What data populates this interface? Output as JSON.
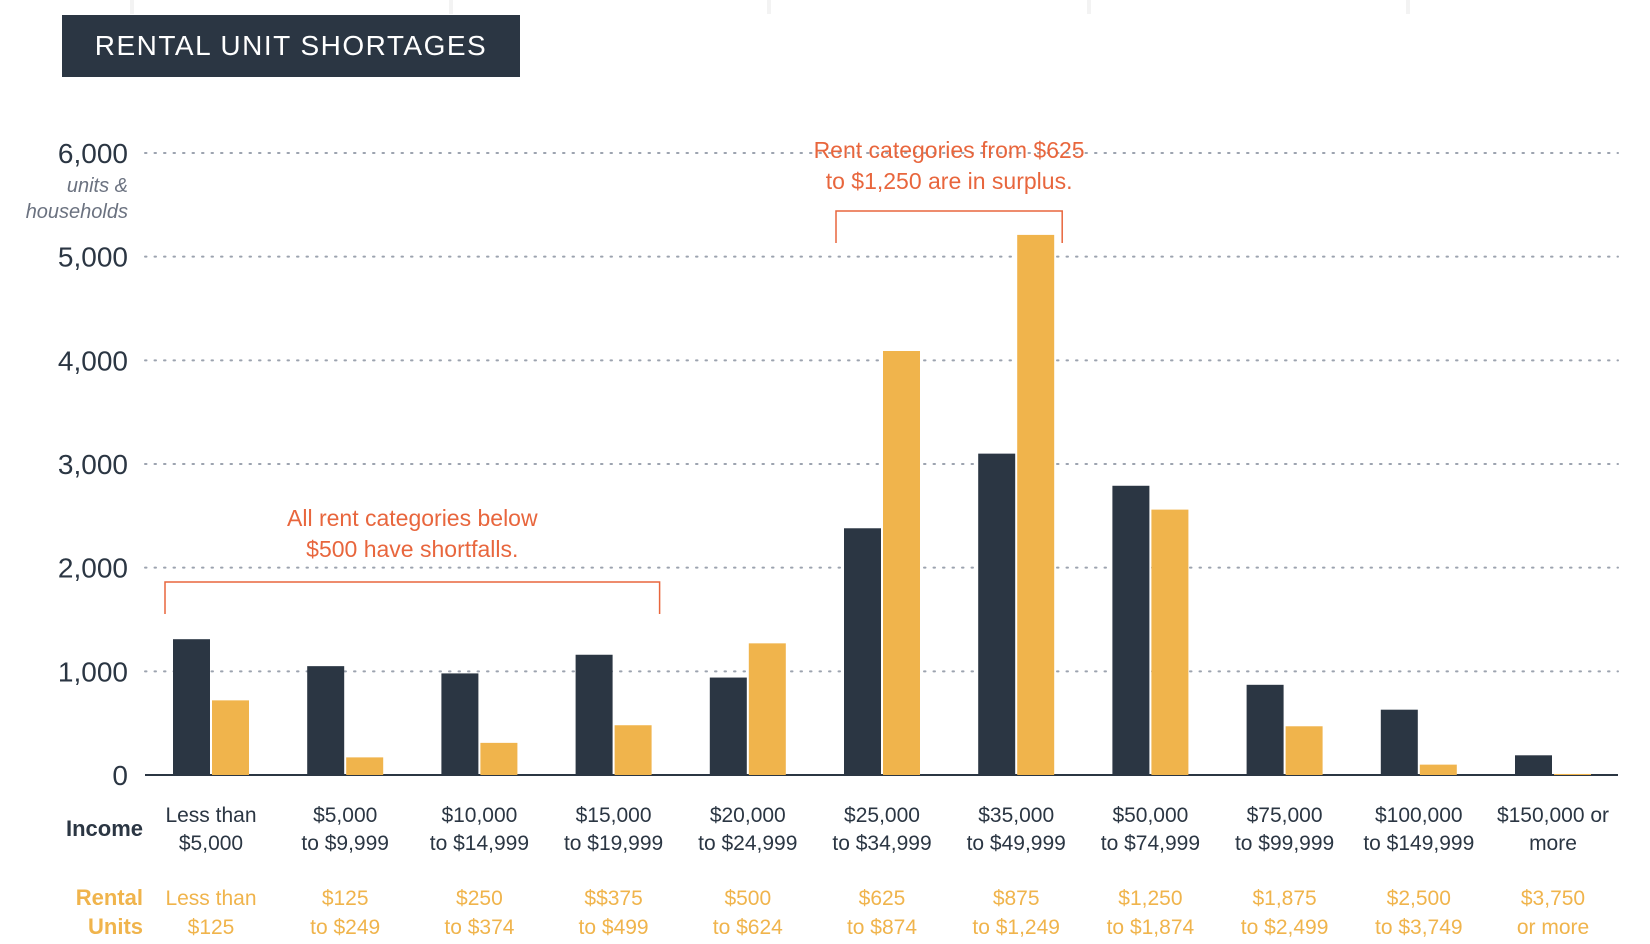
{
  "title": "RENTAL UNIT SHORTAGES",
  "colors": {
    "households": "#2b3643",
    "rental_units": "#f0b44c",
    "annotation": "#e8663d",
    "title_bg": "#2b3643"
  },
  "axis": {
    "unit_line1": "units &",
    "unit_line2": "households"
  },
  "row_labels": {
    "income": "Income",
    "rental_line1": "Rental",
    "rental_line2": "Units"
  },
  "chart_data": {
    "type": "bar",
    "ylim": [
      0,
      6000
    ],
    "yticks": [
      0,
      1000,
      2000,
      3000,
      4000,
      5000,
      6000
    ],
    "ytick_labels": [
      "0",
      "1,000",
      "2,000",
      "3,000",
      "4,000",
      "5,000",
      "6,000"
    ],
    "grid": true,
    "categories": [
      {
        "income": [
          "Less than",
          "$5,000"
        ],
        "rent": [
          "Less than",
          "$125"
        ]
      },
      {
        "income": [
          "$5,000",
          "to $9,999"
        ],
        "rent": [
          "$125",
          "to $249"
        ]
      },
      {
        "income": [
          "$10,000",
          "to $14,999"
        ],
        "rent": [
          "$250",
          "to $374"
        ]
      },
      {
        "income": [
          "$15,000",
          "to $19,999"
        ],
        "rent": [
          "$$375",
          "to $499"
        ]
      },
      {
        "income": [
          "$20,000",
          "to $24,999"
        ],
        "rent": [
          "$500",
          "to $624"
        ]
      },
      {
        "income": [
          "$25,000",
          "to $34,999"
        ],
        "rent": [
          "$625",
          "to $874"
        ]
      },
      {
        "income": [
          "$35,000",
          "to $49,999"
        ],
        "rent": [
          "$875",
          "to $1,249"
        ]
      },
      {
        "income": [
          "$50,000",
          "to $74,999"
        ],
        "rent": [
          "$1,250",
          "to $1,874"
        ]
      },
      {
        "income": [
          "$75,000",
          "to $99,999"
        ],
        "rent": [
          "$1,875",
          "to $2,499"
        ]
      },
      {
        "income": [
          "$100,000",
          "to $149,999"
        ],
        "rent": [
          "$2,500",
          "to $3,749"
        ]
      },
      {
        "income": [
          "$150,000 or",
          "more"
        ],
        "rent": [
          "$3,750",
          "or more"
        ]
      }
    ],
    "series": [
      {
        "values": [
          1310,
          1050,
          980,
          1160,
          940,
          2380,
          3100,
          2790,
          870,
          630,
          190
        ]
      },
      {
        "values": [
          720,
          170,
          310,
          480,
          1270,
          4090,
          5210,
          2560,
          470,
          100,
          10
        ]
      }
    ],
    "annotations": [
      {
        "lines": [
          "All rent categories below",
          "$500 have shortfalls."
        ],
        "from_category": 0,
        "to_category": 3
      },
      {
        "lines": [
          "Rent categories from $625",
          "to $1,250 are in surplus."
        ],
        "from_category": 5,
        "to_category": 6
      }
    ]
  }
}
